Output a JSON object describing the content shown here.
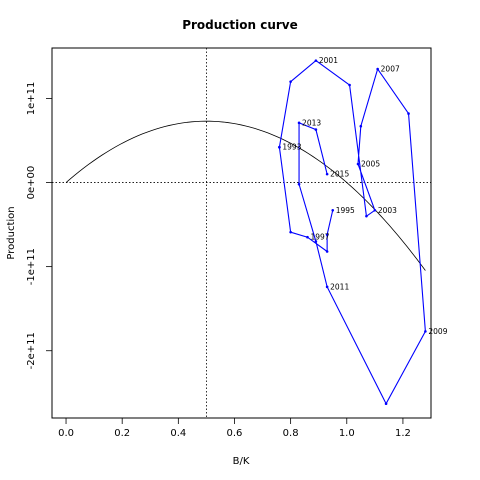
{
  "chart_data": {
    "type": "line",
    "title": "Production curve",
    "xlabel": "B/K",
    "ylabel": "Production",
    "xlim": [
      -0.05,
      1.3
    ],
    "ylim": [
      -280000000000.0,
      160000000000.0
    ],
    "x_ticks": [
      0.0,
      0.2,
      0.4,
      0.6,
      0.8,
      1.0,
      1.2
    ],
    "x_tick_labels": [
      "0.0",
      "0.2",
      "0.4",
      "0.6",
      "0.8",
      "1.0",
      "1.2"
    ],
    "y_ticks": [
      -200000000000.0,
      -100000000000.0,
      0,
      100000000000.0
    ],
    "y_tick_labels": [
      "-2e+11",
      "-1e+11",
      "0e+00",
      "1e+11"
    ],
    "reference_lines": {
      "vertical_x": 0.5,
      "horizontal_y": 0
    },
    "curve": {
      "description_type": "parabola",
      "x_start": 0.0,
      "x_end": 1.28,
      "peak_x": 0.5,
      "peak_y": 73000000000.0
    },
    "series": [
      {
        "color": "#0000ff",
        "points": [
          {
            "x": 0.76,
            "y": 42000000000.0,
            "label": "1993"
          },
          {
            "x": 0.8,
            "y": 120000000000.0,
            "label": ""
          },
          {
            "x": 0.89,
            "y": 145000000000.0,
            "label": "2001"
          },
          {
            "x": 1.01,
            "y": 116000000000.0,
            "label": ""
          },
          {
            "x": 1.07,
            "y": -40000000000.0,
            "label": ""
          },
          {
            "x": 1.1,
            "y": -33000000000.0,
            "label": "2003"
          },
          {
            "x": 1.04,
            "y": 22000000000.0,
            "label": "2005"
          },
          {
            "x": 1.05,
            "y": 67000000000.0,
            "label": ""
          },
          {
            "x": 1.11,
            "y": 135000000000.0,
            "label": "2007"
          },
          {
            "x": 1.22,
            "y": 82000000000.0,
            "label": ""
          },
          {
            "x": 1.28,
            "y": -177000000000.0,
            "label": "2009"
          },
          {
            "x": 1.14,
            "y": -263000000000.0,
            "label": ""
          },
          {
            "x": 0.93,
            "y": -124000000000.0,
            "label": "2011"
          },
          {
            "x": 0.89,
            "y": -70000000000.0,
            "label": ""
          },
          {
            "x": 0.83,
            "y": -2000000000.0,
            "label": ""
          },
          {
            "x": 0.83,
            "y": 71000000000.0,
            "label": "2013"
          },
          {
            "x": 0.89,
            "y": 63000000000.0,
            "label": ""
          },
          {
            "x": 0.93,
            "y": 10000000000.0,
            "label": "2015"
          }
        ]
      },
      {
        "color": "#0000ff",
        "points": [
          {
            "x": 0.95,
            "y": -33000000000.0,
            "label": "1995"
          },
          {
            "x": 0.93,
            "y": -62000000000.0,
            "label": ""
          },
          {
            "x": 0.93,
            "y": -82000000000.0,
            "label": ""
          },
          {
            "x": 0.86,
            "y": -65000000000.0,
            "label": "1997"
          },
          {
            "x": 0.8,
            "y": -59000000000.0,
            "label": ""
          },
          {
            "x": 0.76,
            "y": 42000000000.0,
            "label": ""
          }
        ]
      }
    ],
    "colors": {
      "series": "#0000ff",
      "curve": "#000000",
      "axes": "#000000"
    }
  }
}
